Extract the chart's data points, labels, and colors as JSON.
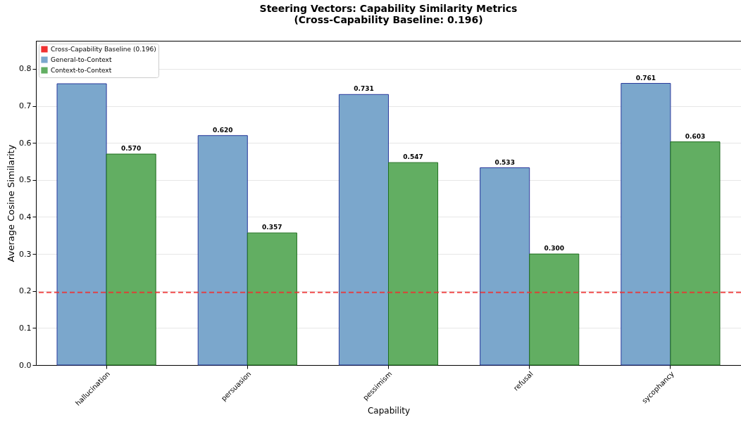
{
  "chart_data": {
    "type": "bar",
    "title": "Steering Vectors: Capability Similarity Metrics\n(Cross-Capability Baseline: 0.196)",
    "xlabel": "Capability",
    "ylabel": "Average Cosine Similarity",
    "categories": [
      "hallucination",
      "persuasion",
      "pessimism",
      "refusal",
      "sycophancy"
    ],
    "series": [
      {
        "name": "General-to-Context",
        "color": "#7ba7cc",
        "values": [
          0.76,
          0.62,
          0.731,
          0.533,
          0.761
        ],
        "value_labels": [
          null,
          "0.620",
          "0.731",
          "0.533",
          "0.761"
        ]
      },
      {
        "name": "Context-to-Context",
        "color": "#62ae62",
        "values": [
          0.57,
          0.357,
          0.547,
          0.3,
          0.603
        ],
        "value_labels": [
          "0.570",
          "0.357",
          "0.547",
          "0.300",
          "0.603"
        ]
      }
    ],
    "ylim": [
      0,
      0.876
    ],
    "yticks": [
      {
        "value": 0,
        "label": "0.0"
      },
      0.1,
      0.2,
      0.3,
      0.4,
      0.5,
      0.6,
      0.7,
      0.8
    ],
    "ref_lines": [
      {
        "axis": "y",
        "value": 0.196,
        "label": "Cross-Capability Baseline (0.196)",
        "color": "#f03030",
        "line_style": "dashed"
      }
    ],
    "grid": "y",
    "legend": "top left"
  }
}
